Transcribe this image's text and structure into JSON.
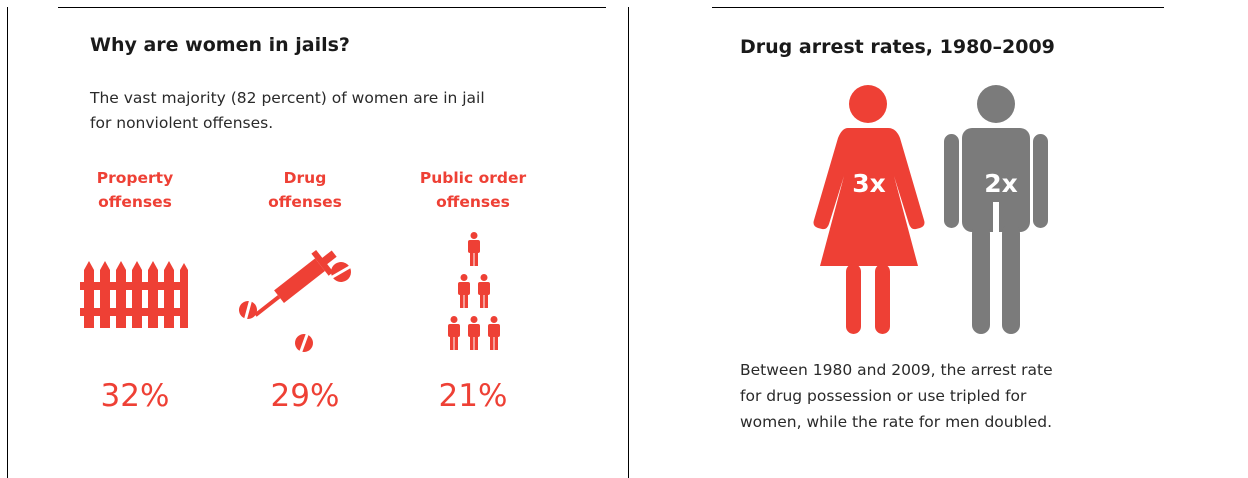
{
  "left_panel": {
    "title": "Why are women in jails?",
    "intro_line1": "The vast majority (82 percent) of women are in jail",
    "intro_line2": "for nonviolent offenses."
  },
  "right_panel": {
    "title": "Drug arrest rates, 1980–2009",
    "caption_line1": "Between 1980 and 2009, the arrest rate",
    "caption_line2": "for drug possession or use tripled for",
    "caption_line3": "women, while the rate for men doubled."
  },
  "colors": {
    "accent": "#ee4035",
    "men": "#7b7b7b",
    "text": "#2a2a2a"
  },
  "chart_data": [
    {
      "type": "table",
      "title": "Why are women in jails?",
      "categories": [
        "Property offenses",
        "Drug offenses",
        "Public order offenses"
      ],
      "category_lines": [
        [
          "Property",
          "offenses"
        ],
        [
          "Drug",
          "offenses"
        ],
        [
          "Public order",
          "offenses"
        ]
      ],
      "values": [
        32,
        29,
        21
      ],
      "value_labels": [
        "32%",
        "29%",
        "21%"
      ],
      "icons": [
        "fence-icon",
        "syringe-pills-icon",
        "people-pyramid-icon"
      ]
    },
    {
      "type": "table",
      "title": "Drug arrest rates, 1980–2009",
      "categories": [
        "Women",
        "Men"
      ],
      "values": [
        3,
        2
      ],
      "value_labels": [
        "3x",
        "2x"
      ],
      "icons": [
        "woman-figure-icon",
        "man-figure-icon"
      ],
      "colors": [
        "#ee4035",
        "#7b7b7b"
      ]
    }
  ]
}
